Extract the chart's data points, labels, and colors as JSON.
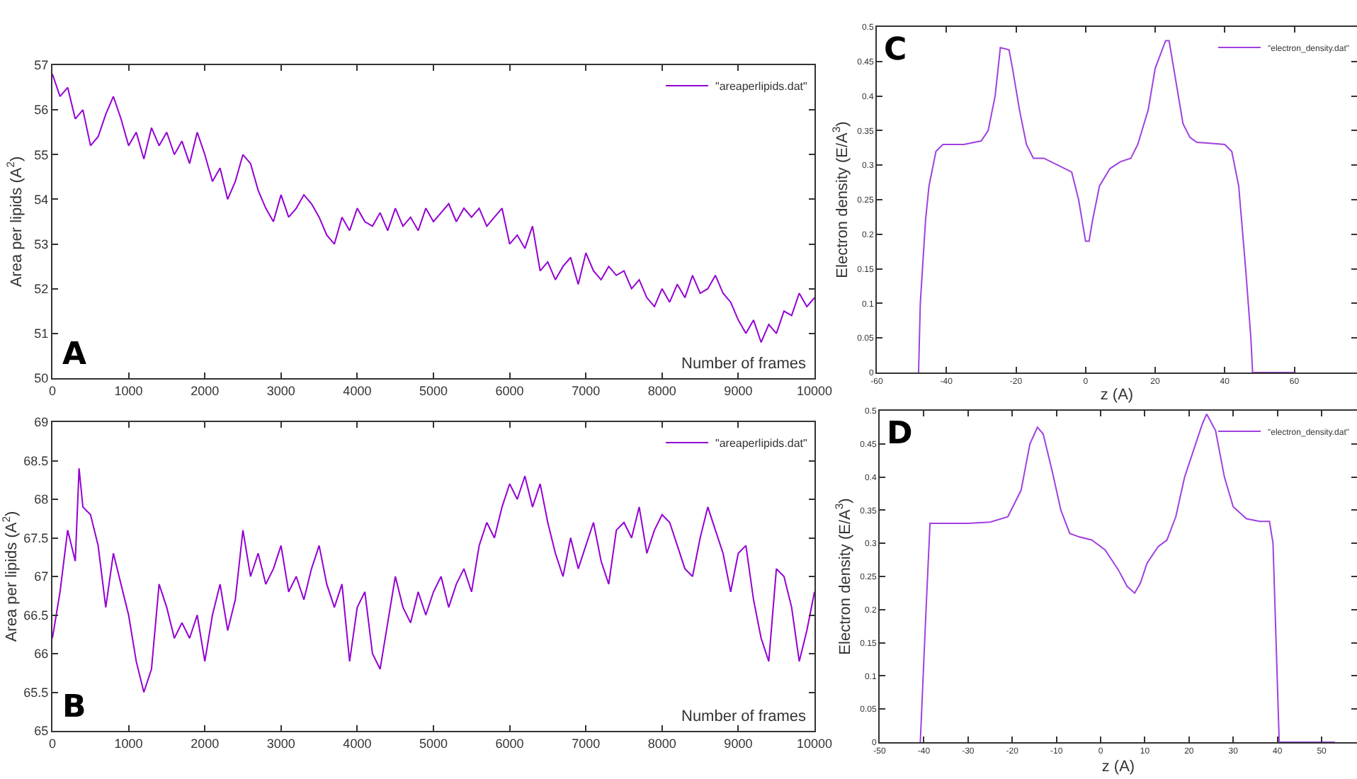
{
  "chart_data": [
    {
      "type": "line",
      "xlabel": "Number of frames",
      "ylabel": "Area per lipids (A$^{2}$)",
      "annotations": [
        "A"
      ],
      "legend": "top right",
      "grid": false,
      "marker": "none",
      "line_style": "solid",
      "xlim": [
        0,
        10000
      ],
      "xticks": [
        0,
        1000,
        2000,
        3000,
        4000,
        5000,
        6000,
        7000,
        8000,
        9000,
        10000
      ],
      "ylim": [
        50,
        57
      ],
      "yticks": [
        50,
        51,
        52,
        53,
        54,
        55,
        56,
        57
      ],
      "x": [
        0,
        100,
        200,
        300,
        400,
        500,
        600,
        700,
        800,
        900,
        1000,
        1100,
        1200,
        1300,
        1400,
        1500,
        1600,
        1700,
        1800,
        1900,
        2000,
        2100,
        2200,
        2300,
        2400,
        2500,
        2600,
        2700,
        2800,
        2900,
        3000,
        3100,
        3200,
        3300,
        3400,
        3500,
        3600,
        3700,
        3800,
        3900,
        4000,
        4100,
        4200,
        4300,
        4400,
        4500,
        4600,
        4700,
        4800,
        4900,
        5000,
        5100,
        5200,
        5300,
        5400,
        5500,
        5600,
        5700,
        5800,
        5900,
        6000,
        6100,
        6200,
        6300,
        6400,
        6500,
        6600,
        6700,
        6800,
        6900,
        7000,
        7100,
        7200,
        7300,
        7400,
        7500,
        7600,
        7700,
        7800,
        7900,
        8000,
        8100,
        8200,
        8300,
        8400,
        8500,
        8600,
        8700,
        8800,
        8900,
        9000,
        9100,
        9200,
        9300,
        9400,
        9500,
        9600,
        9700,
        9800,
        9900,
        10000
      ],
      "series": [
        {
          "name": "\"areaperlipids.dat\"",
          "color": "#9400d3",
          "values": [
            56.8,
            56.3,
            56.5,
            55.8,
            56.0,
            55.2,
            55.4,
            55.9,
            56.3,
            55.8,
            55.2,
            55.5,
            54.9,
            55.6,
            55.2,
            55.5,
            55.0,
            55.3,
            54.8,
            55.5,
            55.0,
            54.4,
            54.7,
            54.0,
            54.4,
            55.0,
            54.8,
            54.2,
            53.8,
            53.5,
            54.1,
            53.6,
            53.8,
            54.1,
            53.9,
            53.6,
            53.2,
            53.0,
            53.6,
            53.3,
            53.8,
            53.5,
            53.4,
            53.7,
            53.3,
            53.8,
            53.4,
            53.6,
            53.3,
            53.8,
            53.5,
            53.7,
            53.9,
            53.5,
            53.8,
            53.6,
            53.8,
            53.4,
            53.6,
            53.8,
            53.0,
            53.2,
            52.9,
            53.4,
            52.4,
            52.6,
            52.2,
            52.5,
            52.7,
            52.1,
            52.8,
            52.4,
            52.2,
            52.5,
            52.3,
            52.4,
            52.0,
            52.2,
            51.8,
            51.6,
            52.0,
            51.7,
            52.1,
            51.8,
            52.3,
            51.9,
            52.0,
            52.3,
            51.9,
            51.7,
            51.3,
            51.0,
            51.3,
            50.8,
            51.2,
            51.0,
            51.5,
            51.4,
            51.9,
            51.6,
            51.8
          ]
        }
      ]
    },
    {
      "type": "line",
      "xlabel": "Number of frames",
      "ylabel": "Area per lipids (A$^{2}$)",
      "annotations": [
        "B"
      ],
      "legend": "top right",
      "grid": false,
      "marker": "none",
      "line_style": "solid",
      "xlim": [
        0,
        10000
      ],
      "xticks": [
        0,
        1000,
        2000,
        3000,
        4000,
        5000,
        6000,
        7000,
        8000,
        9000,
        10000
      ],
      "ylim": [
        65,
        69
      ],
      "yticks": [
        65,
        65.5,
        66,
        66.5,
        67,
        67.5,
        68,
        68.5,
        69
      ],
      "x": [
        0,
        100,
        200,
        300,
        350,
        400,
        500,
        600,
        700,
        800,
        900,
        1000,
        1100,
        1200,
        1300,
        1400,
        1500,
        1600,
        1700,
        1800,
        1900,
        2000,
        2100,
        2200,
        2300,
        2400,
        2500,
        2600,
        2700,
        2800,
        2900,
        3000,
        3100,
        3200,
        3300,
        3400,
        3500,
        3600,
        3700,
        3800,
        3900,
        4000,
        4100,
        4200,
        4300,
        4400,
        4500,
        4600,
        4700,
        4800,
        4900,
        5000,
        5100,
        5200,
        5300,
        5400,
        5500,
        5600,
        5700,
        5800,
        5900,
        6000,
        6100,
        6200,
        6300,
        6400,
        6500,
        6600,
        6700,
        6800,
        6900,
        7000,
        7100,
        7200,
        7300,
        7400,
        7500,
        7600,
        7700,
        7800,
        7900,
        8000,
        8100,
        8200,
        8300,
        8400,
        8500,
        8600,
        8700,
        8800,
        8900,
        9000,
        9100,
        9200,
        9300,
        9400,
        9500,
        9600,
        9700,
        9800,
        9900,
        10000
      ],
      "series": [
        {
          "name": "\"areaperlipids.dat\"",
          "color": "#9400d3",
          "values": [
            66.2,
            66.8,
            67.6,
            67.2,
            68.4,
            67.9,
            67.8,
            67.4,
            66.6,
            67.3,
            66.9,
            66.5,
            65.9,
            65.5,
            65.8,
            66.9,
            66.6,
            66.2,
            66.4,
            66.2,
            66.5,
            65.9,
            66.5,
            66.9,
            66.3,
            66.7,
            67.6,
            67.0,
            67.3,
            66.9,
            67.1,
            67.4,
            66.8,
            67.0,
            66.7,
            67.1,
            67.4,
            66.9,
            66.6,
            66.9,
            65.9,
            66.6,
            66.8,
            66.0,
            65.8,
            66.4,
            67.0,
            66.6,
            66.4,
            66.8,
            66.5,
            66.8,
            67.0,
            66.6,
            66.9,
            67.1,
            66.8,
            67.4,
            67.7,
            67.5,
            67.9,
            68.2,
            68.0,
            68.3,
            67.9,
            68.2,
            67.7,
            67.3,
            67.0,
            67.5,
            67.1,
            67.4,
            67.7,
            67.2,
            66.9,
            67.6,
            67.7,
            67.5,
            67.9,
            67.3,
            67.6,
            67.8,
            67.7,
            67.4,
            67.1,
            67.0,
            67.5,
            67.9,
            67.6,
            67.3,
            66.8,
            67.3,
            67.4,
            66.7,
            66.2,
            65.9,
            67.1,
            67.0,
            66.6,
            65.9,
            66.3,
            66.8
          ]
        }
      ]
    },
    {
      "type": "line",
      "xlabel": "z (A)",
      "ylabel": "Electron density (E/A$^{3}$)",
      "annotations": [
        "C"
      ],
      "legend": "top right",
      "grid": false,
      "marker": "none",
      "line_style": "solid",
      "xlim": [
        -60,
        78
      ],
      "xticks": [
        -60,
        -40,
        -20,
        0,
        20,
        40,
        60
      ],
      "ylim": [
        0,
        0.5
      ],
      "yticks": [
        0,
        0.05,
        0.1,
        0.15,
        0.2,
        0.25,
        0.3,
        0.35,
        0.4,
        0.45,
        0.5
      ],
      "x": [
        -48,
        -47.5,
        -46,
        -45,
        -43,
        -41,
        -35,
        -30,
        -28,
        -26,
        -24.5,
        -22,
        -21,
        -19,
        -17,
        -15,
        -12,
        -8,
        -4,
        -2,
        0,
        1,
        2,
        4,
        7,
        10,
        13,
        15,
        18,
        20,
        23,
        24,
        26,
        28,
        30,
        32,
        35,
        40,
        42,
        44,
        46,
        47.5,
        48,
        60
      ],
      "series": [
        {
          "name": "\"electron_density.dat\"",
          "color": "#a040e0",
          "values": [
            0,
            0.1,
            0.22,
            0.27,
            0.32,
            0.33,
            0.33,
            0.335,
            0.35,
            0.4,
            0.47,
            0.467,
            0.44,
            0.38,
            0.33,
            0.31,
            0.31,
            0.3,
            0.29,
            0.25,
            0.19,
            0.19,
            0.22,
            0.27,
            0.295,
            0.305,
            0.31,
            0.33,
            0.38,
            0.44,
            0.48,
            0.48,
            0.42,
            0.36,
            0.34,
            0.333,
            0.332,
            0.33,
            0.32,
            0.27,
            0.15,
            0.05,
            0,
            0
          ]
        }
      ]
    },
    {
      "type": "line",
      "xlabel": "z (A)",
      "ylabel": "Electron density (E/A$^{3}$)",
      "annotations": [
        "D"
      ],
      "legend": "top right",
      "grid": false,
      "marker": "none",
      "line_style": "solid",
      "xlim": [
        -50,
        58
      ],
      "xticks": [
        -50,
        -40,
        -30,
        -20,
        -10,
        0,
        10,
        20,
        30,
        40,
        50
      ],
      "ylim": [
        0,
        0.5
      ],
      "yticks": [
        0,
        0.05,
        0.1,
        0.15,
        0.2,
        0.25,
        0.3,
        0.35,
        0.4,
        0.45,
        0.5
      ],
      "x": [
        -40.8,
        -39.5,
        -38.6,
        -30,
        -25,
        -21,
        -18,
        -16,
        -14.3,
        -13,
        -11,
        -9,
        -7,
        -5,
        -2,
        1,
        4,
        6,
        7.7,
        9,
        10.5,
        13,
        15,
        17,
        19,
        21,
        23,
        24,
        26,
        28,
        30,
        33,
        36,
        38.2,
        39,
        40.4,
        53
      ],
      "series": [
        {
          "name": "\"electron_density.dat\"",
          "color": "#a040e0",
          "values": [
            0,
            0.2,
            0.33,
            0.33,
            0.332,
            0.34,
            0.38,
            0.45,
            0.475,
            0.465,
            0.41,
            0.35,
            0.315,
            0.31,
            0.305,
            0.29,
            0.26,
            0.235,
            0.225,
            0.24,
            0.27,
            0.295,
            0.305,
            0.34,
            0.4,
            0.44,
            0.48,
            0.495,
            0.47,
            0.4,
            0.355,
            0.337,
            0.333,
            0.333,
            0.3,
            0,
            0
          ]
        }
      ]
    }
  ]
}
